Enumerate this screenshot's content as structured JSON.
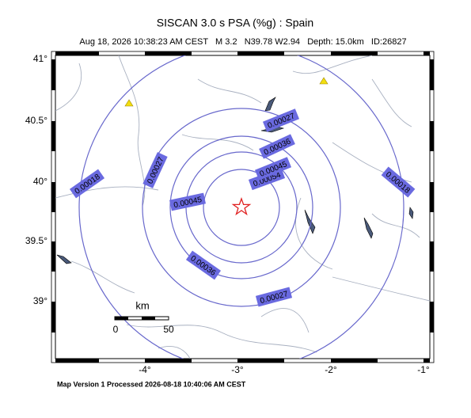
{
  "header": {
    "title": "SISCAN 3.0 s PSA (%g) : Spain",
    "subtitle": "Aug 18, 2026 10:38:23 AM CEST   M 3.2   N39.78 W2.94   Depth: 15.0km   ID:26827"
  },
  "axes": {
    "lat_labels": [
      "41°",
      "40.5°",
      "40°",
      "39.5°",
      "39°"
    ],
    "lon_labels": [
      "-4°",
      "-3°",
      "-2°",
      "-1°"
    ]
  },
  "contours": [
    {
      "label": "0.00054"
    },
    {
      "label": "0.00045"
    },
    {
      "label": "0.00036"
    },
    {
      "label": "0.00027"
    },
    {
      "label": "0.00018"
    }
  ],
  "scale_bar": {
    "unit": "km",
    "start": "0",
    "end": "50"
  },
  "footer": "Map Version 1 Processed 2026-08-18 10:40:06 AM CEST"
}
